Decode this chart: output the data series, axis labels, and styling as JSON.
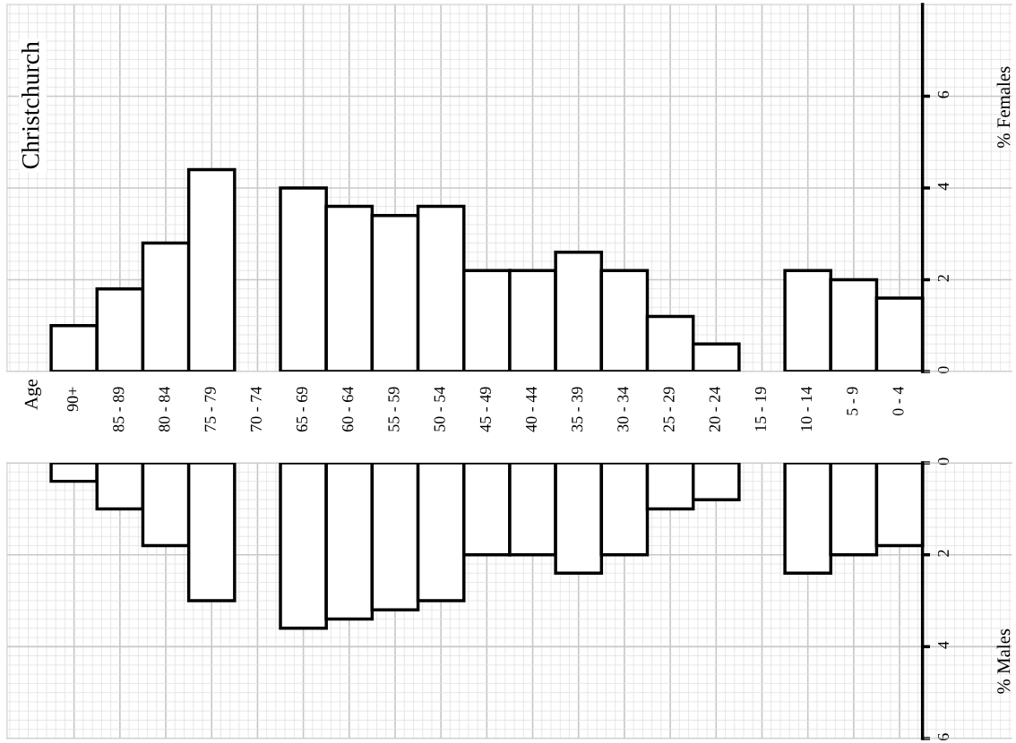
{
  "chart_data": [
    {
      "type": "bar",
      "title": "Christchurch",
      "annotations": [
        "Age"
      ],
      "ylabel": "% Females",
      "categories": [
        "90+",
        "85 - 89",
        "80 - 84",
        "75 - 79",
        "70 - 74",
        "65 - 69",
        "60 - 64",
        "55 - 59",
        "50 - 54",
        "45 - 49",
        "40 - 44",
        "35 - 39",
        "30 - 34",
        "25 - 29",
        "20 - 24",
        "15 - 19",
        "10 - 14",
        "5 - 9",
        "0 - 4"
      ],
      "values": [
        1.0,
        1.8,
        2.8,
        4.4,
        null,
        4.0,
        3.6,
        3.4,
        3.6,
        2.2,
        2.2,
        2.6,
        2.2,
        1.2,
        0.6,
        null,
        2.2,
        2.0,
        1.6
      ],
      "color": "#ffffff",
      "ylim": [
        0,
        8.0
      ],
      "yticks": [
        0,
        2,
        4,
        6
      ],
      "grid": true
    },
    {
      "type": "bar",
      "ylabel": "% Males",
      "tick_labels": "y",
      "categories": [
        null,
        null,
        null,
        null,
        null,
        null,
        null,
        null,
        null,
        null,
        null,
        null,
        null,
        null,
        null,
        null,
        null,
        null,
        null
      ],
      "values": [
        0.4,
        1.0,
        1.8,
        3.0,
        null,
        3.6,
        3.4,
        3.2,
        3.0,
        2.0,
        2.0,
        2.4,
        2.0,
        1.0,
        0.8,
        null,
        2.4,
        2.0,
        1.8
      ],
      "color": "#ffffff",
      "ylim": [
        6,
        0
      ],
      "yticks": [
        0,
        2,
        4,
        6
      ],
      "grid": true
    }
  ]
}
